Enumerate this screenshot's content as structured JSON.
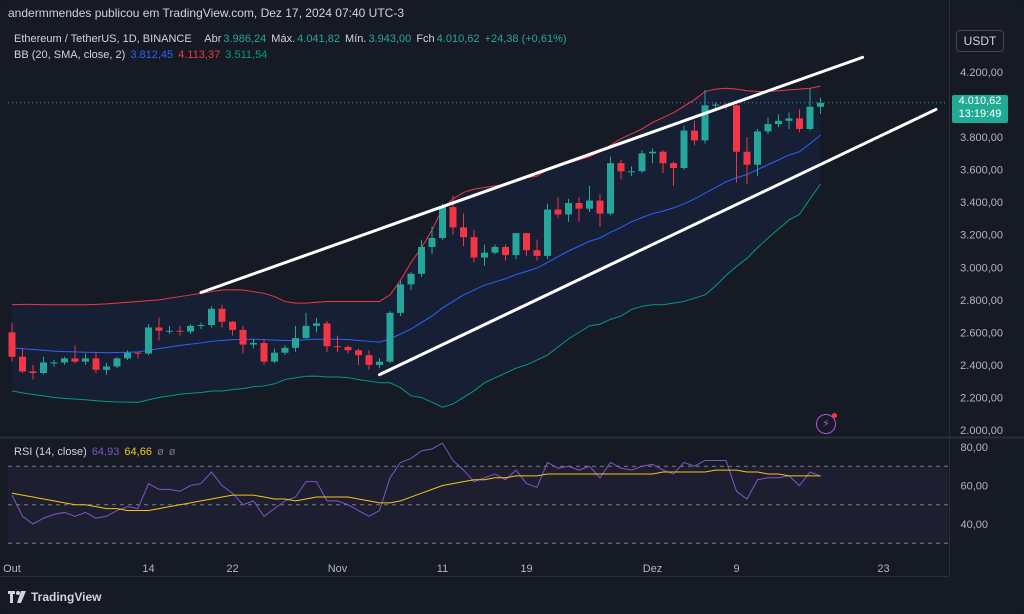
{
  "header": {
    "publisher": "andermmendes publicou em TradingView.com, Dez 17, 2024 07:40 UTC-3"
  },
  "legend": {
    "symbol": "Ethereum / TetherUS, 1D, BINANCE",
    "open_label": "Abr",
    "open": "3.986,24",
    "high_label": "Máx.",
    "high": "4.041,82",
    "low_label": "Mín.",
    "low": "3.943,00",
    "close_label": "Fch",
    "close": "4.010,62",
    "change": "+24,38 (+0,61%)",
    "bb_label": "BB (20, SMA, close, 2)",
    "bb_basis": "3.812,45",
    "bb_upper": "4.113,37",
    "bb_lower": "3.511,54",
    "rsi_label": "RSI (14, close)",
    "rsi_value": "64,93",
    "rsi_ma": "64,66",
    "rsi_extra1": "ø",
    "rsi_extra2": "ø"
  },
  "currency": "USDT",
  "price_badge": {
    "price": "4.010,62",
    "countdown": "13:19:49"
  },
  "footer_logo": "TradingView",
  "colors": {
    "up": "#26a69a",
    "down": "#f23645",
    "bb_basis": "#2962ff",
    "bb_upper": "#f23645",
    "bb_lower": "#089981",
    "rsi": "#7e57c2",
    "rsi_ma": "#f5c518"
  },
  "chart_data": [
    {
      "type": "candlestick",
      "title": "Ethereum / TetherUS, 1D, BINANCE",
      "y_ticks": [
        "4.200,00",
        "4.000,00",
        "3.800,00",
        "3.600,00",
        "3.400,00",
        "3.200,00",
        "3.000,00",
        "2.800,00",
        "2.600,00",
        "2.400,00",
        "2.200,00",
        "2.000,00"
      ],
      "ylim": [
        1980,
        4300
      ],
      "x_ticks": [
        {
          "label": "Out",
          "date": "2024-10-01"
        },
        {
          "label": "14",
          "date": "2024-10-14"
        },
        {
          "label": "22",
          "date": "2024-10-22"
        },
        {
          "label": "Nov",
          "date": "2024-11-01"
        },
        {
          "label": "11",
          "date": "2024-11-11"
        },
        {
          "label": "19",
          "date": "2024-11-19"
        },
        {
          "label": "Dez",
          "date": "2024-12-01"
        },
        {
          "label": "9",
          "date": "2024-12-09"
        },
        {
          "label": "23",
          "date": "2024-12-23"
        }
      ],
      "candles": [
        {
          "date": "2024-10-01",
          "o": 2600,
          "h": 2660,
          "l": 2420,
          "c": 2450
        },
        {
          "date": "2024-10-02",
          "o": 2450,
          "h": 2500,
          "l": 2350,
          "c": 2360
        },
        {
          "date": "2024-10-03",
          "o": 2360,
          "h": 2400,
          "l": 2310,
          "c": 2350
        },
        {
          "date": "2024-10-04",
          "o": 2350,
          "h": 2450,
          "l": 2340,
          "c": 2415
        },
        {
          "date": "2024-10-05",
          "o": 2415,
          "h": 2430,
          "l": 2390,
          "c": 2415
        },
        {
          "date": "2024-10-06",
          "o": 2415,
          "h": 2450,
          "l": 2400,
          "c": 2440
        },
        {
          "date": "2024-10-07",
          "o": 2440,
          "h": 2520,
          "l": 2410,
          "c": 2420
        },
        {
          "date": "2024-10-08",
          "o": 2420,
          "h": 2470,
          "l": 2400,
          "c": 2440
        },
        {
          "date": "2024-10-09",
          "o": 2440,
          "h": 2480,
          "l": 2350,
          "c": 2370
        },
        {
          "date": "2024-10-10",
          "o": 2370,
          "h": 2410,
          "l": 2340,
          "c": 2390
        },
        {
          "date": "2024-10-11",
          "o": 2390,
          "h": 2450,
          "l": 2380,
          "c": 2440
        },
        {
          "date": "2024-10-12",
          "o": 2440,
          "h": 2490,
          "l": 2430,
          "c": 2475
        },
        {
          "date": "2024-10-13",
          "o": 2475,
          "h": 2480,
          "l": 2440,
          "c": 2470
        },
        {
          "date": "2024-10-14",
          "o": 2470,
          "h": 2650,
          "l": 2460,
          "c": 2630
        },
        {
          "date": "2024-10-15",
          "o": 2630,
          "h": 2690,
          "l": 2550,
          "c": 2610
        },
        {
          "date": "2024-10-16",
          "o": 2610,
          "h": 2640,
          "l": 2590,
          "c": 2610
        },
        {
          "date": "2024-10-17",
          "o": 2610,
          "h": 2640,
          "l": 2580,
          "c": 2605
        },
        {
          "date": "2024-10-18",
          "o": 2605,
          "h": 2650,
          "l": 2590,
          "c": 2640
        },
        {
          "date": "2024-10-19",
          "o": 2640,
          "h": 2660,
          "l": 2620,
          "c": 2645
        },
        {
          "date": "2024-10-20",
          "o": 2645,
          "h": 2760,
          "l": 2630,
          "c": 2745
        },
        {
          "date": "2024-10-21",
          "o": 2745,
          "h": 2770,
          "l": 2630,
          "c": 2665
        },
        {
          "date": "2024-10-22",
          "o": 2665,
          "h": 2670,
          "l": 2580,
          "c": 2615
        },
        {
          "date": "2024-10-23",
          "o": 2615,
          "h": 2640,
          "l": 2470,
          "c": 2525
        },
        {
          "date": "2024-10-24",
          "o": 2525,
          "h": 2560,
          "l": 2500,
          "c": 2535
        },
        {
          "date": "2024-10-25",
          "o": 2535,
          "h": 2560,
          "l": 2400,
          "c": 2420
        },
        {
          "date": "2024-10-26",
          "o": 2420,
          "h": 2500,
          "l": 2410,
          "c": 2475
        },
        {
          "date": "2024-10-27",
          "o": 2475,
          "h": 2520,
          "l": 2460,
          "c": 2505
        },
        {
          "date": "2024-10-28",
          "o": 2505,
          "h": 2640,
          "l": 2480,
          "c": 2565
        },
        {
          "date": "2024-10-29",
          "o": 2565,
          "h": 2720,
          "l": 2560,
          "c": 2640
        },
        {
          "date": "2024-10-30",
          "o": 2640,
          "h": 2690,
          "l": 2600,
          "c": 2655
        },
        {
          "date": "2024-10-31",
          "o": 2655,
          "h": 2670,
          "l": 2480,
          "c": 2515
        },
        {
          "date": "2024-11-01",
          "o": 2515,
          "h": 2580,
          "l": 2480,
          "c": 2510
        },
        {
          "date": "2024-11-02",
          "o": 2510,
          "h": 2520,
          "l": 2470,
          "c": 2490
        },
        {
          "date": "2024-11-03",
          "o": 2490,
          "h": 2500,
          "l": 2400,
          "c": 2460
        },
        {
          "date": "2024-11-04",
          "o": 2460,
          "h": 2490,
          "l": 2370,
          "c": 2400
        },
        {
          "date": "2024-11-05",
          "o": 2400,
          "h": 2440,
          "l": 2380,
          "c": 2420
        },
        {
          "date": "2024-11-06",
          "o": 2420,
          "h": 2730,
          "l": 2410,
          "c": 2720
        },
        {
          "date": "2024-11-07",
          "o": 2720,
          "h": 2920,
          "l": 2700,
          "c": 2895
        },
        {
          "date": "2024-11-08",
          "o": 2895,
          "h": 2970,
          "l": 2860,
          "c": 2960
        },
        {
          "date": "2024-11-09",
          "o": 2960,
          "h": 3170,
          "l": 2940,
          "c": 3125
        },
        {
          "date": "2024-11-10",
          "o": 3125,
          "h": 3250,
          "l": 3080,
          "c": 3180
        },
        {
          "date": "2024-11-11",
          "o": 3180,
          "h": 3390,
          "l": 3170,
          "c": 3370
        },
        {
          "date": "2024-11-12",
          "o": 3370,
          "h": 3440,
          "l": 3200,
          "c": 3245
        },
        {
          "date": "2024-11-13",
          "o": 3245,
          "h": 3330,
          "l": 3130,
          "c": 3185
        },
        {
          "date": "2024-11-14",
          "o": 3185,
          "h": 3230,
          "l": 3030,
          "c": 3060
        },
        {
          "date": "2024-11-15",
          "o": 3060,
          "h": 3140,
          "l": 3010,
          "c": 3090
        },
        {
          "date": "2024-11-16",
          "o": 3090,
          "h": 3140,
          "l": 3080,
          "c": 3125
        },
        {
          "date": "2024-11-17",
          "o": 3125,
          "h": 3140,
          "l": 3040,
          "c": 3075
        },
        {
          "date": "2024-11-18",
          "o": 3075,
          "h": 3210,
          "l": 3050,
          "c": 3210
        },
        {
          "date": "2024-11-19",
          "o": 3210,
          "h": 3210,
          "l": 3070,
          "c": 3105
        },
        {
          "date": "2024-11-20",
          "o": 3105,
          "h": 3170,
          "l": 3040,
          "c": 3070
        },
        {
          "date": "2024-11-21",
          "o": 3070,
          "h": 3390,
          "l": 3050,
          "c": 3355
        },
        {
          "date": "2024-11-22",
          "o": 3355,
          "h": 3430,
          "l": 3300,
          "c": 3325
        },
        {
          "date": "2024-11-23",
          "o": 3325,
          "h": 3420,
          "l": 3280,
          "c": 3395
        },
        {
          "date": "2024-11-24",
          "o": 3395,
          "h": 3430,
          "l": 3280,
          "c": 3360
        },
        {
          "date": "2024-11-25",
          "o": 3360,
          "h": 3500,
          "l": 3340,
          "c": 3410
        },
        {
          "date": "2024-11-26",
          "o": 3410,
          "h": 3450,
          "l": 3250,
          "c": 3330
        },
        {
          "date": "2024-11-27",
          "o": 3330,
          "h": 3680,
          "l": 3320,
          "c": 3640
        },
        {
          "date": "2024-11-28",
          "o": 3640,
          "h": 3660,
          "l": 3540,
          "c": 3590
        },
        {
          "date": "2024-11-29",
          "o": 3590,
          "h": 3620,
          "l": 3560,
          "c": 3590
        },
        {
          "date": "2024-11-30",
          "o": 3590,
          "h": 3720,
          "l": 3580,
          "c": 3700
        },
        {
          "date": "2024-12-01",
          "o": 3700,
          "h": 3730,
          "l": 3640,
          "c": 3710
        },
        {
          "date": "2024-12-02",
          "o": 3710,
          "h": 3720,
          "l": 3580,
          "c": 3640
        },
        {
          "date": "2024-12-03",
          "o": 3640,
          "h": 3650,
          "l": 3500,
          "c": 3610
        },
        {
          "date": "2024-12-04",
          "o": 3610,
          "h": 3870,
          "l": 3600,
          "c": 3840
        },
        {
          "date": "2024-12-05",
          "o": 3840,
          "h": 3900,
          "l": 3750,
          "c": 3780
        },
        {
          "date": "2024-12-06",
          "o": 3780,
          "h": 4090,
          "l": 3760,
          "c": 3995
        },
        {
          "date": "2024-12-07",
          "o": 3995,
          "h": 4010,
          "l": 3960,
          "c": 4000
        },
        {
          "date": "2024-12-08",
          "o": 4000,
          "h": 4010,
          "l": 3970,
          "c": 3995
        },
        {
          "date": "2024-12-09",
          "o": 3995,
          "h": 4000,
          "l": 3520,
          "c": 3710
        },
        {
          "date": "2024-12-10",
          "o": 3710,
          "h": 3800,
          "l": 3510,
          "c": 3630
        },
        {
          "date": "2024-12-11",
          "o": 3630,
          "h": 3850,
          "l": 3560,
          "c": 3835
        },
        {
          "date": "2024-12-12",
          "o": 3835,
          "h": 3920,
          "l": 3820,
          "c": 3880
        },
        {
          "date": "2024-12-13",
          "o": 3880,
          "h": 3940,
          "l": 3860,
          "c": 3900
        },
        {
          "date": "2024-12-14",
          "o": 3900,
          "h": 3950,
          "l": 3850,
          "c": 3915
        },
        {
          "date": "2024-12-15",
          "o": 3915,
          "h": 3970,
          "l": 3830,
          "c": 3850
        },
        {
          "date": "2024-12-16",
          "o": 3850,
          "h": 4100,
          "l": 3840,
          "c": 3986
        },
        {
          "date": "2024-12-17",
          "o": 3986,
          "h": 4042,
          "l": 3943,
          "c": 4011
        }
      ],
      "bb_basis": [
        2505,
        2500,
        2495,
        2490,
        2485,
        2482,
        2480,
        2478,
        2476,
        2475,
        2476,
        2478,
        2480,
        2490,
        2500,
        2510,
        2520,
        2528,
        2535,
        2545,
        2550,
        2555,
        2557,
        2558,
        2555,
        2552,
        2550,
        2550,
        2555,
        2558,
        2558,
        2558,
        2556,
        2550,
        2545,
        2540,
        2560,
        2590,
        2620,
        2660,
        2700,
        2750,
        2790,
        2830,
        2860,
        2890,
        2910,
        2930,
        2955,
        2975,
        2995,
        3030,
        3065,
        3100,
        3130,
        3160,
        3180,
        3215,
        3245,
        3280,
        3305,
        3330,
        3345,
        3365,
        3390,
        3420,
        3455,
        3490,
        3525,
        3550,
        3570,
        3600,
        3630,
        3660,
        3690,
        3710,
        3760,
        3812
      ],
      "bb_upper": [
        2770,
        2772,
        2772,
        2770,
        2770,
        2770,
        2770,
        2770,
        2772,
        2775,
        2780,
        2785,
        2790,
        2795,
        2800,
        2810,
        2820,
        2830,
        2840,
        2850,
        2860,
        2862,
        2860,
        2850,
        2840,
        2820,
        2790,
        2780,
        2780,
        2785,
        2790,
        2790,
        2790,
        2790,
        2790,
        2790,
        2830,
        2920,
        3030,
        3120,
        3230,
        3360,
        3420,
        3460,
        3480,
        3490,
        3500,
        3510,
        3530,
        3550,
        3560,
        3600,
        3620,
        3640,
        3660,
        3680,
        3710,
        3750,
        3790,
        3820,
        3850,
        3890,
        3920,
        3950,
        3990,
        4030,
        4080,
        4095,
        4100,
        4095,
        4085,
        4080,
        4080,
        4085,
        4090,
        4095,
        4100,
        4113
      ],
      "bb_lower": [
        2240,
        2228,
        2218,
        2210,
        2200,
        2194,
        2190,
        2186,
        2180,
        2175,
        2172,
        2171,
        2170,
        2185,
        2200,
        2210,
        2220,
        2226,
        2230,
        2240,
        2240,
        2248,
        2254,
        2266,
        2270,
        2284,
        2310,
        2320,
        2330,
        2331,
        2326,
        2326,
        2322,
        2310,
        2300,
        2290,
        2290,
        2260,
        2210,
        2200,
        2170,
        2140,
        2160,
        2200,
        2240,
        2290,
        2320,
        2350,
        2380,
        2400,
        2430,
        2460,
        2510,
        2560,
        2600,
        2640,
        2650,
        2680,
        2700,
        2740,
        2760,
        2770,
        2770,
        2780,
        2790,
        2810,
        2830,
        2885,
        2950,
        3005,
        3055,
        3120,
        3180,
        3235,
        3290,
        3325,
        3420,
        3511
      ]
    },
    {
      "type": "line",
      "title": "RSI (14, close)",
      "y_ticks": [
        "80,00",
        "60,00",
        "40,00"
      ],
      "ylim": [
        29,
        82
      ],
      "series": [
        {
          "name": "RSI",
          "values": [
            55,
            44,
            40,
            43,
            45,
            46,
            44,
            46,
            43,
            44,
            47,
            49,
            48,
            61,
            58,
            58,
            57,
            60,
            61,
            67,
            60,
            56,
            50,
            52,
            44,
            48,
            52,
            54,
            62,
            62,
            52,
            52,
            50,
            47,
            44,
            47,
            64,
            72,
            74,
            78,
            79,
            82,
            73,
            68,
            62,
            64,
            66,
            63,
            68,
            61,
            59,
            72,
            69,
            70,
            68,
            70,
            64,
            72,
            69,
            68,
            70,
            71,
            68,
            66,
            72,
            70,
            73,
            73,
            73,
            57,
            53,
            63,
            64,
            64,
            65,
            60,
            67,
            65
          ]
        },
        {
          "name": "MA",
          "values": [
            56,
            55,
            54,
            53,
            52,
            51,
            50,
            50,
            49,
            48,
            48,
            47,
            47,
            47,
            48,
            49,
            50,
            51,
            52,
            53,
            54,
            55,
            55,
            55,
            54,
            53,
            53,
            52,
            53,
            54,
            54,
            54,
            54,
            53,
            52,
            51,
            51,
            52,
            54,
            56,
            58,
            60,
            61,
            62,
            63,
            63,
            64,
            64,
            65,
            65,
            65,
            66,
            66,
            66,
            66,
            66,
            66,
            66,
            66,
            66,
            66,
            66,
            67,
            67,
            67,
            67,
            67,
            68,
            68,
            68,
            67,
            67,
            66,
            66,
            65,
            65,
            65,
            65
          ]
        }
      ]
    }
  ]
}
